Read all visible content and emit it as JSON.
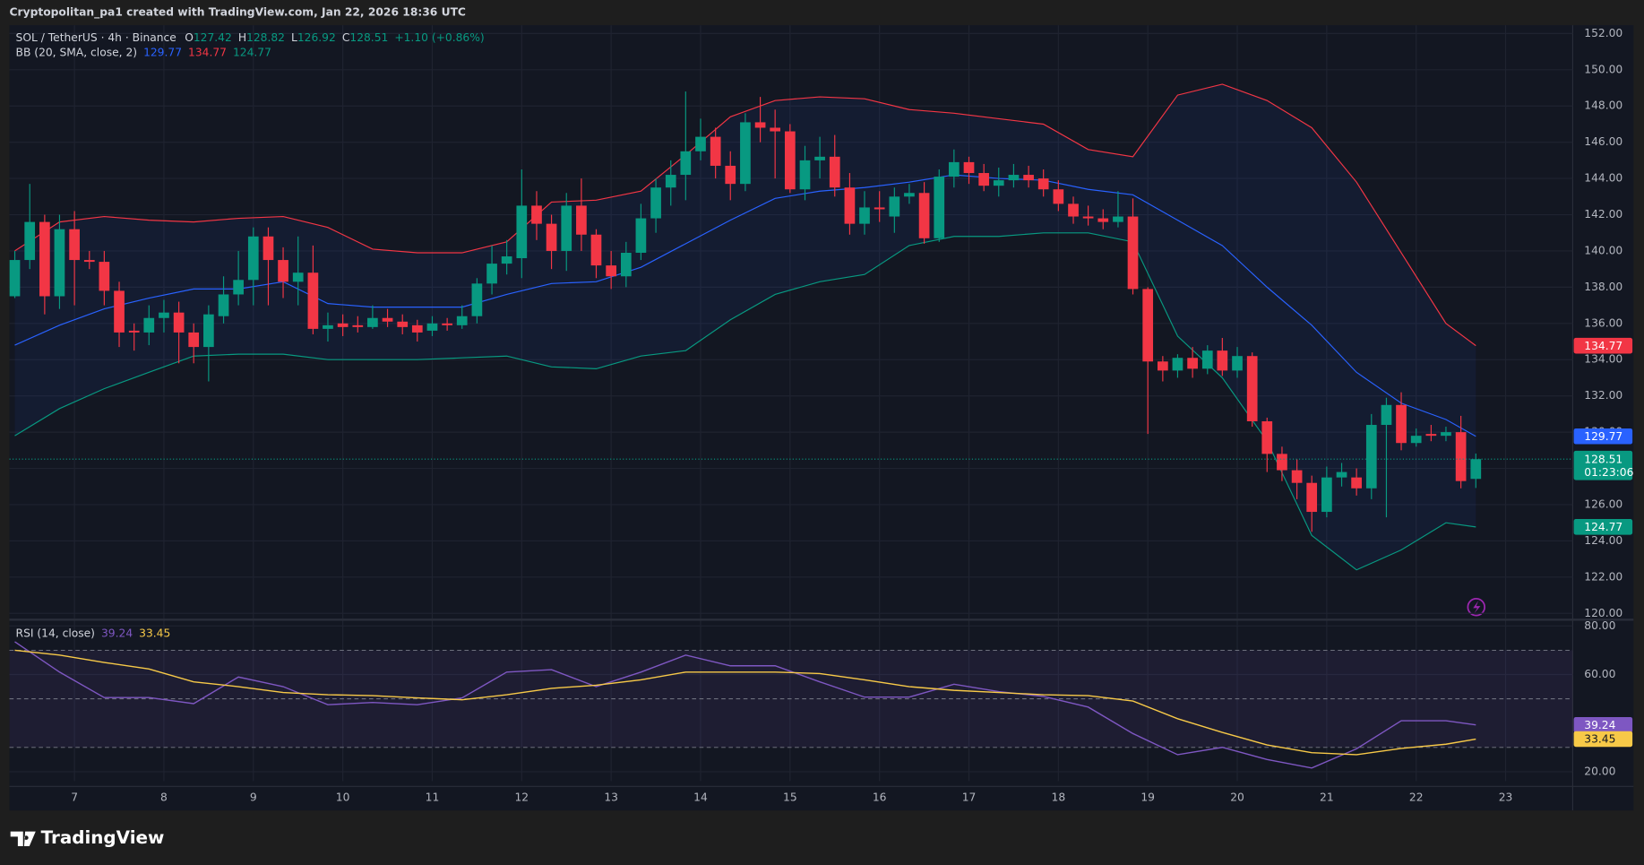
{
  "header": {
    "watermark": "Cryptopolitan_pa1 created with TradingView.com, Jan 22, 2026 18:36 UTC"
  },
  "footer": {
    "logo": "TradingView"
  },
  "chart_data": [
    {
      "type": "candlestick",
      "title": "SOL / TetherUS · 4h · Binance",
      "ohlc_labels": [
        "O",
        "H",
        "L",
        "C"
      ],
      "change": "+1.10 (+0.86%)",
      "countdown": "01:23:06",
      "up_color": "#089981",
      "down_color": "#f23645",
      "grid": true,
      "xlim": [
        6.273,
        23.75
      ],
      "ylim": [
        119.71,
        152.46
      ],
      "yticks": [
        {
          "value": 120,
          "label": "120.00"
        },
        {
          "value": 122,
          "label": "122.00"
        },
        {
          "value": 124,
          "label": "124.00"
        },
        {
          "value": 126,
          "label": "126.00"
        },
        {
          "value": 128,
          "label": "128.00"
        },
        {
          "value": 130,
          "label": "130.00"
        },
        {
          "value": 132,
          "label": "132.00"
        },
        {
          "value": 134,
          "label": "134.00"
        },
        {
          "value": 136,
          "label": "136.00"
        },
        {
          "value": 138,
          "label": "138.00"
        },
        {
          "value": 140,
          "label": "140.00"
        },
        {
          "value": 142,
          "label": "142.00"
        },
        {
          "value": 144,
          "label": "144.00"
        },
        {
          "value": 146,
          "label": "146.00"
        },
        {
          "value": 148,
          "label": "148.00"
        },
        {
          "value": 150,
          "label": "150.00"
        },
        {
          "value": 152,
          "label": "152.00"
        }
      ],
      "x": [
        6.333,
        6.5,
        6.667,
        6.833,
        7,
        7.167,
        7.333,
        7.5,
        7.667,
        7.833,
        8,
        8.167,
        8.333,
        8.5,
        8.667,
        8.833,
        9,
        9.167,
        9.333,
        9.5,
        9.667,
        9.833,
        10,
        10.167,
        10.333,
        10.5,
        10.667,
        10.833,
        11,
        11.167,
        11.333,
        11.5,
        11.667,
        11.833,
        12,
        12.167,
        12.333,
        12.5,
        12.667,
        12.833,
        13,
        13.167,
        13.333,
        13.5,
        13.667,
        13.833,
        14,
        14.167,
        14.333,
        14.5,
        14.667,
        14.833,
        15,
        15.167,
        15.333,
        15.5,
        15.667,
        15.833,
        16,
        16.167,
        16.333,
        16.5,
        16.667,
        16.833,
        17,
        17.167,
        17.333,
        17.5,
        17.667,
        17.833,
        18,
        18.167,
        18.333,
        18.5,
        18.667,
        18.833,
        19,
        19.167,
        19.333,
        19.5,
        19.667,
        19.833,
        20,
        20.167,
        20.333,
        20.5,
        20.667,
        20.833,
        21,
        21.167,
        21.333,
        21.5,
        21.667,
        21.833,
        22,
        22.167,
        22.333,
        22.5,
        22.667
      ],
      "open": [
        137.5,
        139.5,
        141.6,
        137.5,
        141.2,
        139.5,
        139.4,
        137.8,
        135.6,
        135.5,
        136.3,
        136.6,
        135.5,
        134.7,
        136.4,
        137.6,
        138.4,
        140.8,
        139.5,
        138.3,
        138.8,
        135.7,
        136,
        135.9,
        135.8,
        136.3,
        136.1,
        135.9,
        135.6,
        136,
        135.9,
        136.4,
        138.2,
        139.3,
        139.6,
        142.5,
        141.5,
        140,
        142.5,
        140.9,
        139.2,
        138.6,
        139.9,
        141.8,
        143.5,
        144.2,
        145.5,
        146.3,
        144.7,
        143.7,
        147.1,
        146.8,
        146.6,
        143.4,
        145,
        145.2,
        143.5,
        141.5,
        142.4,
        141.9,
        143,
        143.2,
        140.7,
        144.1,
        144.9,
        144.3,
        143.6,
        143.9,
        144.2,
        144,
        143.4,
        142.6,
        141.9,
        141.8,
        141.6,
        141.9,
        137.9,
        133.9,
        133.4,
        134.1,
        133.5,
        134.5,
        133.4,
        134.2,
        130.6,
        128.8,
        127.9,
        127.2,
        125.6,
        127.5,
        127.5,
        126.9,
        130.4,
        131.5,
        129.4,
        129.9,
        129.8,
        130,
        127.42
      ],
      "high": [
        140,
        143.7,
        142,
        142,
        142.2,
        140,
        140,
        138.3,
        136,
        137,
        137.3,
        137.2,
        136,
        137,
        138.6,
        140,
        141.3,
        141.3,
        140.2,
        140.8,
        140.3,
        136.6,
        136.5,
        136.4,
        137,
        136.8,
        136.5,
        136.2,
        136.4,
        136.3,
        137,
        138.5,
        140.3,
        140.6,
        144.5,
        143.3,
        142,
        143.2,
        144,
        141.2,
        140,
        140.5,
        142.6,
        144,
        145,
        148.8,
        147.3,
        146.8,
        145.5,
        147.6,
        148.5,
        147.8,
        147,
        145.8,
        146.3,
        146.4,
        144.3,
        143.3,
        143.3,
        143.5,
        143.7,
        143.8,
        144.5,
        145.6,
        145.2,
        144.8,
        144.6,
        144.8,
        144.7,
        144.5,
        143.9,
        143,
        142.5,
        142.3,
        143.3,
        142.9,
        138,
        134.2,
        134.3,
        134.7,
        134.8,
        135.2,
        134.7,
        134.4,
        130.8,
        129.2,
        128.5,
        127.6,
        128.1,
        128.3,
        128,
        131,
        131.9,
        132.2,
        130.2,
        130.4,
        130.3,
        130.9,
        128.82
      ],
      "low": [
        137.4,
        139,
        136.5,
        136.8,
        137,
        139,
        137,
        134.7,
        134.5,
        134.8,
        135.5,
        133.8,
        133.8,
        132.8,
        136,
        137,
        137,
        137,
        137.4,
        137,
        135.4,
        135,
        135.3,
        135.5,
        135.7,
        135.8,
        135.4,
        135,
        135.3,
        135.6,
        135.7,
        136,
        137.6,
        138.7,
        138.5,
        140.6,
        139,
        138.9,
        140,
        138.5,
        137.9,
        138,
        139.5,
        141,
        142.5,
        142.8,
        145,
        144,
        142.8,
        143.3,
        146,
        144,
        143.2,
        142.8,
        144,
        143,
        140.9,
        140.9,
        141.6,
        141,
        142.6,
        140.4,
        140.5,
        143.5,
        143.7,
        143.3,
        143,
        143.5,
        143.5,
        143,
        142.2,
        141.5,
        141.4,
        141.2,
        141.3,
        137.6,
        129.9,
        132.8,
        133,
        133,
        133.2,
        133.1,
        133,
        130.3,
        127.8,
        127.3,
        126.3,
        124.5,
        125.3,
        127,
        126.5,
        126.3,
        125.3,
        129,
        129.2,
        129.5,
        129.5,
        126.9,
        126.92
      ],
      "close": [
        139.5,
        141.6,
        137.5,
        141.2,
        139.5,
        139.4,
        137.8,
        135.5,
        135.5,
        136.3,
        136.6,
        135.5,
        134.7,
        136.5,
        137.6,
        138.4,
        140.8,
        139.5,
        138.3,
        138.8,
        135.7,
        135.9,
        135.8,
        135.8,
        136.3,
        136.1,
        135.8,
        135.5,
        136,
        135.9,
        136.4,
        138.2,
        139.3,
        139.7,
        142.5,
        141.5,
        140,
        142.5,
        140.9,
        139.2,
        138.6,
        139.9,
        141.8,
        143.5,
        144.2,
        145.5,
        146.3,
        144.7,
        143.7,
        147.1,
        146.8,
        146.6,
        143.4,
        145,
        145.2,
        143.5,
        141.5,
        142.4,
        142.3,
        143,
        143.2,
        140.7,
        144.1,
        144.9,
        144.3,
        143.6,
        143.9,
        144.2,
        143.9,
        143.4,
        142.6,
        141.9,
        141.8,
        141.6,
        141.9,
        137.9,
        133.9,
        133.4,
        134.1,
        133.5,
        134.5,
        133.4,
        134.2,
        130.6,
        128.8,
        127.9,
        127.2,
        125.6,
        127.5,
        127.8,
        126.9,
        130.4,
        131.5,
        129.4,
        129.8,
        129.8,
        130,
        127.3,
        128.51
      ],
      "overlay": {
        "label": "BB (20, SMA, close, 2)",
        "fill": "rgba(41,98,255,0.07)",
        "x": [
          6.333,
          6.833,
          7.333,
          7.833,
          8.333,
          8.833,
          9.333,
          9.833,
          10.333,
          10.833,
          11.333,
          11.833,
          12.333,
          12.833,
          13.333,
          13.833,
          14.333,
          14.833,
          15.333,
          15.833,
          16.333,
          16.833,
          17.333,
          17.833,
          18.333,
          18.833,
          19.333,
          19.833,
          20.333,
          20.833,
          21.333,
          21.833,
          22.333,
          22.667
        ],
        "series": [
          {
            "color": "#2962ff",
            "values": [
              134.8,
              135.9,
              136.8,
              137.4,
              137.9,
              137.9,
              138.3,
              137.1,
              136.9,
              136.9,
              136.9,
              137.6,
              138.2,
              138.3,
              139.1,
              140.4,
              141.7,
              142.9,
              143.3,
              143.5,
              143.8,
              144.2,
              144,
              143.9,
              143.4,
              143.1,
              141.7,
              140.3,
              138,
              135.9,
              133.3,
              131.6,
              130.7,
              129.77
            ]
          },
          {
            "color": "#f23645",
            "values": [
              140,
              141.6,
              141.9,
              141.7,
              141.6,
              141.8,
              141.9,
              141.3,
              140.1,
              139.9,
              139.9,
              140.5,
              142.7,
              142.8,
              143.3,
              145.3,
              147.4,
              148.3,
              148.5,
              148.4,
              147.8,
              147.6,
              147.3,
              147,
              145.6,
              145.2,
              148.6,
              149.2,
              148.3,
              146.8,
              143.8,
              139.9,
              136,
              134.77
            ]
          },
          {
            "color": "#089981",
            "values": [
              129.8,
              131.3,
              132.4,
              133.3,
              134.2,
              134.3,
              134.3,
              134,
              134,
              134,
              134.1,
              134.2,
              133.6,
              133.5,
              134.2,
              134.5,
              136.2,
              137.6,
              138.3,
              138.7,
              140.3,
              140.8,
              140.8,
              141,
              141,
              140.5,
              135.3,
              133,
              129.5,
              124.3,
              122.4,
              123.5,
              125,
              124.77
            ]
          }
        ]
      }
    },
    {
      "type": "line",
      "title": "RSI (14, close)",
      "grid": true,
      "xlim": [
        6.273,
        23.75
      ],
      "ylim": [
        16.12,
        82.16
      ],
      "xticks": [
        7,
        8,
        9,
        10,
        11,
        12,
        13,
        14,
        15,
        16,
        17,
        18,
        19,
        20,
        21,
        22,
        23
      ],
      "yticks": [
        {
          "value": 20,
          "label": "20.00"
        },
        {
          "value": 60,
          "label": "60.00"
        },
        {
          "value": 80,
          "label": "80.00"
        }
      ],
      "bands": [
        70,
        50,
        30
      ],
      "band_fill": "rgba(126,87,194,0.1)",
      "x": [
        6.333,
        6.833,
        7.333,
        7.833,
        8.333,
        8.833,
        9.333,
        9.833,
        10.333,
        10.833,
        11.333,
        11.833,
        12.333,
        12.833,
        13.333,
        13.833,
        14.333,
        14.833,
        15.333,
        15.833,
        16.333,
        16.833,
        17.333,
        17.833,
        18.333,
        18.833,
        19.333,
        19.833,
        20.333,
        20.833,
        21.333,
        21.833,
        22.333,
        22.667
      ],
      "series": [
        {
          "color": "#7e57c2",
          "values": [
            73.5,
            61,
            50.5,
            50.5,
            48,
            59,
            55,
            47.6,
            48.5,
            47.6,
            50.4,
            61,
            62,
            55,
            61,
            68,
            63.6,
            63.6,
            57,
            50.7,
            50.7,
            56,
            53,
            51,
            46.6,
            35.7,
            27,
            30,
            25,
            21.5,
            29.4,
            41,
            41,
            39.24
          ]
        },
        {
          "color": "#f7c948",
          "values": [
            70,
            68,
            65,
            62.3,
            57,
            55,
            52.6,
            51.7,
            51.3,
            50.4,
            49.6,
            51.7,
            54.3,
            55.6,
            57.8,
            61,
            61,
            61,
            60.4,
            57.8,
            55,
            53.5,
            52.6,
            51.7,
            51.3,
            49.1,
            41.8,
            36.2,
            31,
            27.8,
            27,
            29.6,
            31.3,
            33.45
          ]
        }
      ]
    }
  ]
}
